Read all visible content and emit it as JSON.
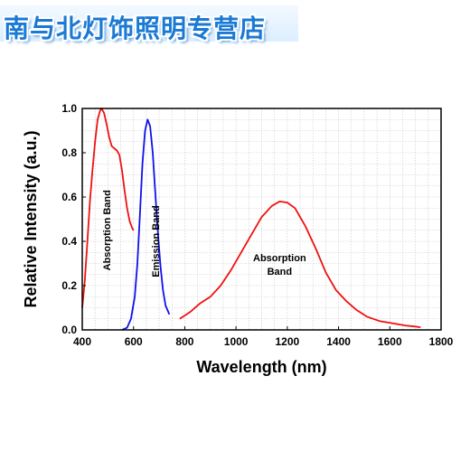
{
  "banner": {
    "text": "南与北灯饰照明专营店"
  },
  "chart_data": {
    "type": "line",
    "xlabel": "Wavelength (nm)",
    "ylabel": "Relative Intensity (a.u.)",
    "xlim": [
      400,
      1800
    ],
    "ylim": [
      0,
      1.0
    ],
    "xticks": [
      400,
      600,
      800,
      1000,
      1200,
      1400,
      1600,
      1800
    ],
    "yticks": [
      0.0,
      0.2,
      0.4,
      0.6,
      0.8,
      1.0
    ],
    "grid": true,
    "series": [
      {
        "color": "#ee1111",
        "points": [
          [
            400,
            0.1
          ],
          [
            410,
            0.22
          ],
          [
            420,
            0.4
          ],
          [
            430,
            0.58
          ],
          [
            440,
            0.72
          ],
          [
            450,
            0.85
          ],
          [
            460,
            0.95
          ],
          [
            470,
            0.99
          ],
          [
            475,
            1.0
          ],
          [
            485,
            0.98
          ],
          [
            495,
            0.93
          ],
          [
            505,
            0.87
          ],
          [
            515,
            0.83
          ],
          [
            525,
            0.82
          ],
          [
            535,
            0.81
          ],
          [
            545,
            0.79
          ],
          [
            555,
            0.72
          ],
          [
            565,
            0.63
          ],
          [
            575,
            0.55
          ],
          [
            585,
            0.49
          ],
          [
            595,
            0.46
          ],
          [
            600,
            0.45
          ]
        ]
      },
      {
        "color": "#1010ee",
        "points": [
          [
            555,
            0.0
          ],
          [
            575,
            0.01
          ],
          [
            590,
            0.05
          ],
          [
            605,
            0.15
          ],
          [
            615,
            0.3
          ],
          [
            625,
            0.52
          ],
          [
            635,
            0.75
          ],
          [
            645,
            0.9
          ],
          [
            655,
            0.95
          ],
          [
            665,
            0.92
          ],
          [
            675,
            0.8
          ],
          [
            685,
            0.62
          ],
          [
            695,
            0.44
          ],
          [
            705,
            0.29
          ],
          [
            715,
            0.18
          ],
          [
            725,
            0.11
          ],
          [
            740,
            0.07
          ]
        ]
      },
      {
        "color": "#ee1111",
        "points": [
          [
            780,
            0.05
          ],
          [
            820,
            0.08
          ],
          [
            860,
            0.12
          ],
          [
            900,
            0.15
          ],
          [
            940,
            0.2
          ],
          [
            980,
            0.27
          ],
          [
            1020,
            0.35
          ],
          [
            1060,
            0.43
          ],
          [
            1100,
            0.51
          ],
          [
            1140,
            0.56
          ],
          [
            1170,
            0.58
          ],
          [
            1200,
            0.575
          ],
          [
            1230,
            0.55
          ],
          [
            1270,
            0.47
          ],
          [
            1310,
            0.37
          ],
          [
            1350,
            0.26
          ],
          [
            1390,
            0.18
          ],
          [
            1430,
            0.13
          ],
          [
            1470,
            0.09
          ],
          [
            1510,
            0.06
          ],
          [
            1560,
            0.04
          ],
          [
            1610,
            0.03
          ],
          [
            1660,
            0.02
          ],
          [
            1700,
            0.015
          ],
          [
            1720,
            0.012
          ]
        ]
      }
    ],
    "annotations": [
      {
        "text": "Absorption Band",
        "x": 510,
        "y": 0.45,
        "rotate": -90
      },
      {
        "text": "Emission Band",
        "x": 700,
        "y": 0.4,
        "rotate": -90
      },
      {
        "text": "Absorption",
        "x": 1170,
        "y": 0.31,
        "rotate": 0
      },
      {
        "text": "Band",
        "x": 1170,
        "y": 0.25,
        "rotate": 0
      }
    ]
  }
}
